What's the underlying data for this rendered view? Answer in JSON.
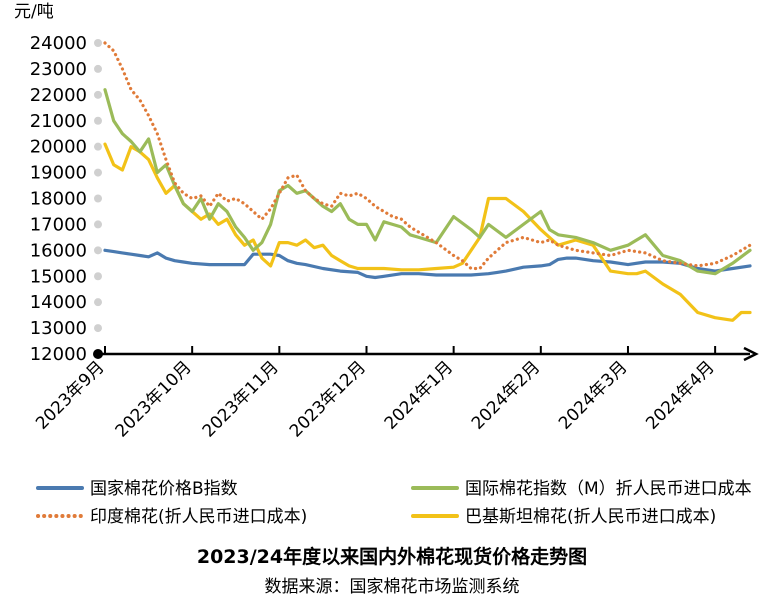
{
  "chart_data": {
    "type": "line",
    "title": "2023/24年度以来国内外棉花现货价格走势图",
    "source": "数据来源：国家棉花市场监测系统",
    "ylabel": "元/吨",
    "ylim": [
      12000,
      24000
    ],
    "yticks": [
      "24000",
      "23000",
      "22000",
      "21000",
      "20000",
      "19000",
      "18000",
      "17000",
      "16000",
      "15000",
      "14000",
      "13000",
      "12000"
    ],
    "xlim": [
      0,
      7.4
    ],
    "categories": [
      "2023年9月",
      "2023年10月",
      "2023年11月",
      "2023年12月",
      "2024年1月",
      "2024年2月",
      "2024年3月",
      "2024年4月"
    ],
    "grid": false,
    "legend_position": "bottom",
    "series": [
      {
        "name": "国家棉花价格B指数",
        "color": "#4a7ab0",
        "style": "solid",
        "x": [
          0,
          0.1,
          0.2,
          0.3,
          0.4,
          0.5,
          0.6,
          0.7,
          0.8,
          0.9,
          1.0,
          1.2,
          1.4,
          1.6,
          1.7,
          1.8,
          1.9,
          2.0,
          2.1,
          2.2,
          2.3,
          2.5,
          2.7,
          2.9,
          3.0,
          3.1,
          3.2,
          3.4,
          3.6,
          3.8,
          4.0,
          4.2,
          4.4,
          4.5,
          4.6,
          4.8,
          5.0,
          5.1,
          5.2,
          5.3,
          5.4,
          5.6,
          5.8,
          6.0,
          6.2,
          6.4,
          6.6,
          6.8,
          7.0,
          7.2,
          7.4
        ],
        "y": [
          16000,
          15950,
          15900,
          15850,
          15800,
          15750,
          15900,
          15700,
          15600,
          15550,
          15500,
          15450,
          15450,
          15450,
          15850,
          15850,
          15850,
          15800,
          15600,
          15500,
          15450,
          15300,
          15200,
          15150,
          15000,
          14950,
          15000,
          15100,
          15100,
          15050,
          15050,
          15050,
          15100,
          15150,
          15200,
          15350,
          15400,
          15450,
          15650,
          15700,
          15700,
          15600,
          15550,
          15450,
          15550,
          15550,
          15500,
          15300,
          15200,
          15300,
          15400
        ]
      },
      {
        "name": "国际棉花指数（M）折人民币进口成本",
        "color": "#9bbb59",
        "style": "solid",
        "x": [
          0,
          0.1,
          0.2,
          0.3,
          0.4,
          0.5,
          0.6,
          0.7,
          0.8,
          0.9,
          1.0,
          1.1,
          1.2,
          1.3,
          1.4,
          1.5,
          1.6,
          1.7,
          1.8,
          1.9,
          2.0,
          2.1,
          2.2,
          2.3,
          2.4,
          2.5,
          2.6,
          2.7,
          2.8,
          2.9,
          3.0,
          3.1,
          3.2,
          3.3,
          3.4,
          3.5,
          3.6,
          3.8,
          4.0,
          4.2,
          4.3,
          4.4,
          4.6,
          4.8,
          5.0,
          5.1,
          5.2,
          5.4,
          5.6,
          5.8,
          6.0,
          6.2,
          6.4,
          6.6,
          6.8,
          7.0,
          7.2,
          7.4
        ],
        "y": [
          22200,
          21000,
          20500,
          20200,
          19800,
          20300,
          19000,
          19300,
          18500,
          17800,
          17500,
          18000,
          17200,
          17800,
          17500,
          16900,
          16500,
          16000,
          16300,
          17000,
          18300,
          18500,
          18200,
          18300,
          18000,
          17700,
          17500,
          17800,
          17200,
          17000,
          17000,
          16400,
          17100,
          17000,
          16900,
          16600,
          16500,
          16300,
          17300,
          16800,
          16500,
          17000,
          16500,
          17000,
          17500,
          16800,
          16600,
          16500,
          16300,
          16000,
          16200,
          16600,
          15800,
          15600,
          15200,
          15100,
          15500,
          16000
        ]
      },
      {
        "name": "印度棉花(折人民币进口成本)",
        "color": "#e07b39",
        "style": "dotted",
        "x": [
          0,
          0.1,
          0.2,
          0.3,
          0.4,
          0.5,
          0.6,
          0.7,
          0.8,
          0.9,
          1.0,
          1.1,
          1.2,
          1.3,
          1.4,
          1.5,
          1.6,
          1.7,
          1.8,
          1.9,
          2.0,
          2.1,
          2.2,
          2.3,
          2.4,
          2.5,
          2.6,
          2.7,
          2.8,
          2.9,
          3.0,
          3.1,
          3.2,
          3.3,
          3.4,
          3.5,
          3.6,
          3.8,
          4.0,
          4.1,
          4.2,
          4.3,
          4.4,
          4.6,
          4.8,
          5.0,
          5.1,
          5.2,
          5.4,
          5.6,
          5.8,
          6.0,
          6.2,
          6.4,
          6.6,
          6.8,
          7.0,
          7.2,
          7.4
        ],
        "y": [
          24000,
          23700,
          23000,
          22200,
          21800,
          21200,
          20500,
          19500,
          18600,
          18200,
          18000,
          18100,
          17700,
          18200,
          17900,
          18000,
          17800,
          17500,
          17200,
          17600,
          18200,
          18800,
          18900,
          18300,
          18000,
          17800,
          17700,
          18200,
          18100,
          18200,
          18000,
          17700,
          17500,
          17300,
          17200,
          16900,
          16700,
          16300,
          15800,
          15600,
          15300,
          15300,
          15700,
          16300,
          16500,
          16300,
          16400,
          16200,
          16000,
          15900,
          15800,
          16000,
          15900,
          15600,
          15500,
          15400,
          15500,
          15800,
          16200
        ]
      },
      {
        "name": "巴基斯坦棉花(折人民币进口成本)",
        "color": "#f2c218",
        "style": "solid",
        "x": [
          0,
          0.1,
          0.2,
          0.3,
          0.4,
          0.5,
          0.6,
          0.7,
          0.8,
          0.9,
          1.0,
          1.1,
          1.2,
          1.3,
          1.4,
          1.5,
          1.6,
          1.7,
          1.8,
          1.9,
          2.0,
          2.1,
          2.2,
          2.3,
          2.4,
          2.5,
          2.6,
          2.7,
          2.8,
          2.9,
          3.0,
          3.2,
          3.4,
          3.6,
          3.8,
          4.0,
          4.1,
          4.2,
          4.3,
          4.4,
          4.5,
          4.6,
          4.8,
          5.0,
          5.1,
          5.2,
          5.4,
          5.6,
          5.8,
          6.0,
          6.1,
          6.2,
          6.4,
          6.6,
          6.8,
          7.0,
          7.2,
          7.3,
          7.4
        ],
        "y": [
          20100,
          19300,
          19100,
          20000,
          19800,
          19500,
          18800,
          18200,
          18500,
          17800,
          17500,
          17200,
          17400,
          17000,
          17200,
          16600,
          16200,
          16400,
          15700,
          15400,
          16300,
          16300,
          16200,
          16400,
          16100,
          16200,
          15800,
          15600,
          15400,
          15300,
          15300,
          15300,
          15250,
          15250,
          15300,
          15350,
          15500,
          16000,
          16500,
          18000,
          18000,
          18000,
          17500,
          16800,
          16500,
          16200,
          16400,
          16200,
          15200,
          15100,
          15100,
          15200,
          14700,
          14300,
          13600,
          13400,
          13300,
          13600,
          13600
        ]
      }
    ]
  }
}
